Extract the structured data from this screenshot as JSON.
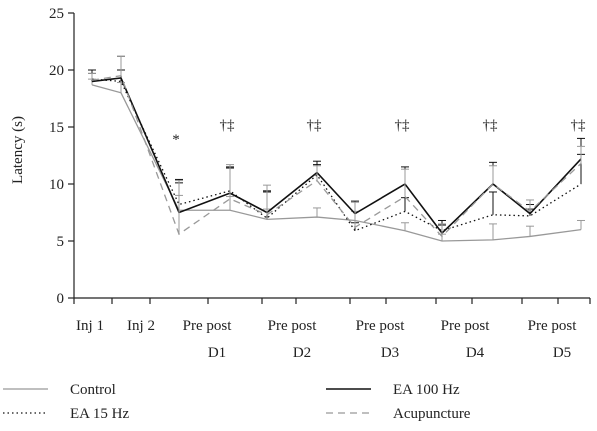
{
  "chart_data": {
    "type": "line",
    "title": "",
    "xlabel": "",
    "ylabel": "Latency (s)",
    "ylim": [
      0,
      25
    ],
    "yticks": [
      0,
      5,
      10,
      15,
      20,
      25
    ],
    "grid": false,
    "legend_position": "bottom",
    "points": [
      "Inj 1",
      "Inj 2",
      "D1 Pre",
      "D1 post",
      "D2 Pre",
      "D2 post",
      "D3 Pre",
      "D3 post",
      "D4 Pre",
      "D4 post",
      "D5 Pre",
      "D5 post"
    ],
    "x_labels": [
      {
        "line1": "Inj 1",
        "line2": ""
      },
      {
        "line1": "Inj 2",
        "line2": ""
      },
      {
        "line1": "Pre post",
        "line2": "D1"
      },
      {
        "line1": "Pre post",
        "line2": "D2"
      },
      {
        "line1": "Pre post",
        "line2": "D3"
      },
      {
        "line1": "Pre post",
        "line2": "D4"
      },
      {
        "line1": "Pre post",
        "line2": "D5"
      }
    ],
    "series": [
      {
        "name": "Control",
        "color": "#999999",
        "dash": "solid",
        "values": [
          18.7,
          18.0,
          7.7,
          7.7,
          6.9,
          7.1,
          6.8,
          5.9,
          5.0,
          5.1,
          5.4,
          6.0
        ],
        "errors": [
          0.5,
          0.9,
          1.3,
          1.2,
          0.9,
          0.8,
          0.8,
          0.7,
          0.6,
          1.4,
          0.9,
          0.8
        ]
      },
      {
        "name": "EA 100 Hz",
        "color": "#111111",
        "dash": "solid",
        "values": [
          19.0,
          19.3,
          7.5,
          9.2,
          7.5,
          11.0,
          7.4,
          10.0,
          5.7,
          10.0,
          7.4,
          12.2
        ],
        "errors": [
          0.7,
          1.9,
          2.6,
          2.3,
          1.8,
          1.0,
          1.1,
          1.5,
          0.7,
          1.9,
          0.8,
          1.8
        ]
      },
      {
        "name": "EA 15 Hz",
        "color": "#111111",
        "dash": "dot",
        "values": [
          19.2,
          19.0,
          8.2,
          9.4,
          7.0,
          10.8,
          5.9,
          7.6,
          5.9,
          7.3,
          7.2,
          10.0
        ],
        "errors": [
          0.8,
          1.0,
          2.2,
          2.0,
          2.4,
          0.9,
          0.7,
          1.2,
          0.9,
          2.0,
          0.6,
          2.6
        ]
      },
      {
        "name": "Acupuncture",
        "color": "#999999",
        "dash": "dash",
        "values": [
          19.1,
          19.5,
          5.6,
          8.7,
          7.3,
          10.3,
          6.2,
          8.9,
          5.4,
          10.0,
          7.6,
          11.8
        ],
        "errors": [
          0.6,
          1.7,
          4.7,
          3.0,
          2.6,
          1.3,
          2.2,
          2.4,
          1.1,
          1.6,
          1.0,
          1.5
        ]
      }
    ],
    "annotations": [
      {
        "text": "*",
        "at": "D1 Pre",
        "y": 13.5
      },
      {
        "text": "†‡",
        "at": "D1 post",
        "y": 14.8
      },
      {
        "text": "†‡",
        "at": "D2 post",
        "y": 14.8
      },
      {
        "text": "†‡",
        "at": "D3 post",
        "y": 14.8
      },
      {
        "text": "†‡",
        "at": "D4 post",
        "y": 14.8
      },
      {
        "text": "†‡",
        "at": "D5 post",
        "y": 14.8
      }
    ],
    "legend_order": [
      "Control",
      "EA 100 Hz",
      "EA 15 Hz",
      "Acupuncture"
    ]
  }
}
